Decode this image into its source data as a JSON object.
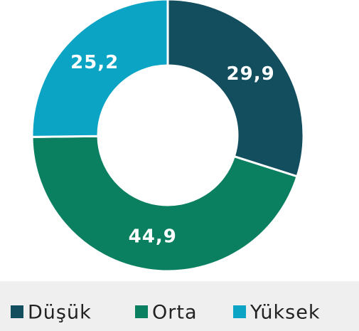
{
  "chart_data": {
    "type": "donut",
    "categories": [
      "Düşük",
      "Orta",
      "Yüksek"
    ],
    "values": [
      29.9,
      44.9,
      25.2
    ],
    "value_labels": [
      "29,9",
      "44,9",
      "25,2"
    ],
    "colors": [
      "#124e5e",
      "#0a8061",
      "#0ba4c5"
    ],
    "legend": "bottom"
  }
}
